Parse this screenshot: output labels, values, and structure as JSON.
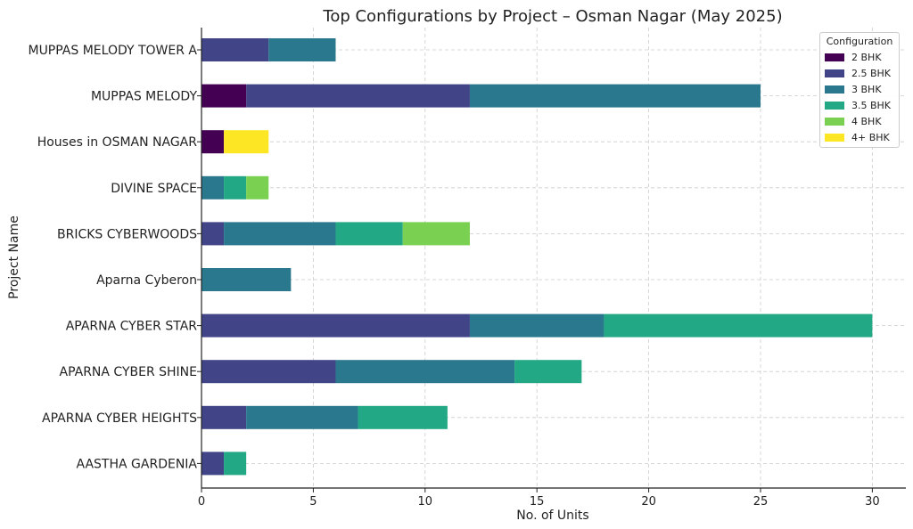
{
  "chart_data": {
    "type": "bar",
    "orientation": "horizontal",
    "stacked": true,
    "title": "Top Configurations by Project – Osman Nagar (May 2025)",
    "xlabel": "No. of Units",
    "ylabel": "Project Name",
    "xlim": [
      0,
      31.5
    ],
    "xticks": [
      0,
      5,
      10,
      15,
      20,
      25,
      30
    ],
    "grid": true,
    "legend_title": "Configuration",
    "legend_position": "top-right",
    "categories": [
      "MUPPAS MELODY TOWER A",
      "MUPPAS MELODY",
      "Houses in OSMAN NAGAR",
      "DIVINE SPACE",
      "BRICKS CYBERWOODS",
      "Aparna Cyberon",
      "APARNA CYBER STAR",
      "APARNA CYBER SHINE",
      "APARNA CYBER HEIGHTS",
      "AASTHA GARDENIA"
    ],
    "series": [
      {
        "name": "2 BHK",
        "color": "#440154",
        "values": [
          0,
          2,
          1,
          0,
          0,
          0,
          0,
          0,
          0,
          0
        ]
      },
      {
        "name": "2.5 BHK",
        "color": "#414487",
        "values": [
          3,
          10,
          0,
          0,
          1,
          0,
          12,
          6,
          2,
          1
        ]
      },
      {
        "name": "3 BHK",
        "color": "#2a788e",
        "values": [
          3,
          13,
          0,
          1,
          5,
          4,
          6,
          8,
          5,
          0
        ]
      },
      {
        "name": "3.5 BHK",
        "color": "#22a884",
        "values": [
          0,
          0,
          0,
          1,
          3,
          0,
          12,
          3,
          4,
          1
        ]
      },
      {
        "name": "4 BHK",
        "color": "#7ad151",
        "values": [
          0,
          0,
          0,
          1,
          3,
          0,
          0,
          0,
          0,
          0
        ]
      },
      {
        "name": "4+ BHK",
        "color": "#fde725",
        "values": [
          0,
          0,
          2,
          0,
          0,
          0,
          0,
          0,
          0,
          0
        ]
      }
    ]
  }
}
